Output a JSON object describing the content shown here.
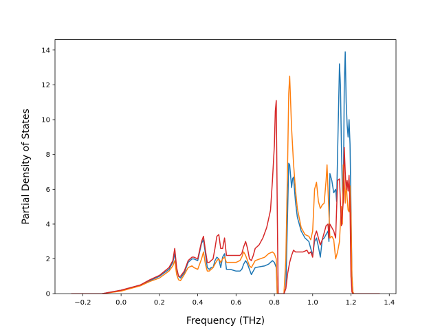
{
  "chart_data": {
    "type": "line",
    "title": "",
    "xlabel": "Frequency (THz)",
    "ylabel": "Partial Density of States",
    "xlim": [
      -0.345,
      1.435
    ],
    "ylim": [
      0,
      14.6
    ],
    "xticks": [
      -0.2,
      0.0,
      0.2,
      0.4,
      0.6,
      0.8,
      1.0,
      1.2,
      1.4
    ],
    "xtick_labels": [
      "−0.2",
      "0.0",
      "0.2",
      "0.4",
      "0.6",
      "0.8",
      "1.0",
      "1.2",
      "1.4"
    ],
    "yticks": [
      0,
      2,
      4,
      6,
      8,
      10,
      12,
      14
    ],
    "ytick_labels": [
      "0",
      "2",
      "4",
      "6",
      "8",
      "10",
      "12",
      "14"
    ],
    "grid": false,
    "legend": "none",
    "series": [
      {
        "color": "#1f77b4",
        "x": [
          -0.26,
          -0.1,
          0.0,
          0.1,
          0.15,
          0.2,
          0.25,
          0.27,
          0.28,
          0.29,
          0.3,
          0.31,
          0.33,
          0.35,
          0.37,
          0.38,
          0.4,
          0.42,
          0.43,
          0.44,
          0.45,
          0.46,
          0.47,
          0.48,
          0.49,
          0.5,
          0.51,
          0.52,
          0.53,
          0.54,
          0.55,
          0.57,
          0.6,
          0.62,
          0.63,
          0.64,
          0.65,
          0.66,
          0.67,
          0.68,
          0.69,
          0.7,
          0.75,
          0.77,
          0.79,
          0.8,
          0.81,
          0.815,
          0.82,
          0.83,
          0.84,
          0.845,
          0.85,
          0.86,
          0.87,
          0.875,
          0.88,
          0.89,
          0.895,
          0.9,
          0.91,
          0.92,
          0.94,
          0.96,
          0.98,
          0.99,
          1.0,
          1.01,
          1.02,
          1.03,
          1.04,
          1.05,
          1.06,
          1.07,
          1.08,
          1.085,
          1.09,
          1.1,
          1.11,
          1.12,
          1.125,
          1.13,
          1.14,
          1.145,
          1.15,
          1.155,
          1.16,
          1.165,
          1.17,
          1.175,
          1.18,
          1.185,
          1.19,
          1.195,
          1.2,
          1.205,
          1.21,
          1.215,
          1.22,
          1.23,
          1.35
        ],
        "y": [
          0,
          0,
          0.2,
          0.5,
          0.75,
          1.0,
          1.4,
          1.8,
          2.3,
          1.4,
          1.0,
          0.9,
          1.2,
          1.8,
          2.0,
          2.0,
          1.9,
          2.9,
          3.1,
          2.3,
          1.5,
          1.4,
          1.5,
          1.5,
          1.9,
          2.1,
          2.0,
          1.5,
          2.1,
          2.3,
          1.4,
          1.4,
          1.3,
          1.3,
          1.4,
          1.7,
          1.9,
          1.7,
          1.4,
          1.1,
          1.3,
          1.5,
          1.6,
          1.7,
          1.9,
          1.8,
          1.5,
          0,
          0,
          0,
          0,
          0,
          0,
          0.3,
          5.0,
          7.5,
          7.4,
          6.1,
          6.6,
          6.7,
          5.3,
          4.4,
          3.6,
          3.2,
          3.0,
          2.6,
          2.2,
          3.0,
          3.2,
          2.7,
          2.1,
          3.1,
          3.2,
          3.4,
          3.6,
          3.0,
          6.9,
          6.5,
          5.8,
          6.0,
          5.3,
          8.0,
          13.2,
          12.0,
          8.5,
          6.0,
          5.3,
          12.0,
          13.9,
          11.0,
          9.7,
          9.0,
          10.0,
          8.6,
          5.0,
          1.0,
          0.1,
          0,
          0,
          0,
          0
        ]
      },
      {
        "color": "#ff7f0e",
        "x": [
          -0.26,
          -0.1,
          0.0,
          0.1,
          0.15,
          0.2,
          0.25,
          0.27,
          0.28,
          0.29,
          0.3,
          0.31,
          0.33,
          0.35,
          0.37,
          0.38,
          0.4,
          0.42,
          0.43,
          0.44,
          0.45,
          0.46,
          0.47,
          0.48,
          0.49,
          0.5,
          0.51,
          0.52,
          0.53,
          0.54,
          0.55,
          0.57,
          0.6,
          0.62,
          0.63,
          0.64,
          0.65,
          0.66,
          0.67,
          0.68,
          0.69,
          0.7,
          0.75,
          0.77,
          0.79,
          0.8,
          0.81,
          0.815,
          0.82,
          0.83,
          0.84,
          0.845,
          0.85,
          0.86,
          0.865,
          0.87,
          0.875,
          0.88,
          0.89,
          0.9,
          0.91,
          0.92,
          0.94,
          0.96,
          0.98,
          0.99,
          1.0,
          1.01,
          1.02,
          1.03,
          1.04,
          1.05,
          1.06,
          1.07,
          1.075,
          1.08,
          1.09,
          1.1,
          1.11,
          1.12,
          1.13,
          1.14,
          1.145,
          1.15,
          1.155,
          1.16,
          1.165,
          1.17,
          1.175,
          1.18,
          1.185,
          1.19,
          1.195,
          1.2,
          1.205,
          1.21,
          1.215,
          1.22,
          1.23,
          1.35
        ],
        "y": [
          0,
          0,
          0.15,
          0.45,
          0.7,
          0.9,
          1.3,
          1.6,
          1.9,
          1.1,
          0.8,
          0.75,
          1.1,
          1.5,
          1.6,
          1.5,
          1.4,
          2.0,
          2.4,
          1.7,
          1.3,
          1.3,
          1.4,
          1.5,
          1.7,
          1.9,
          2.0,
          1.8,
          2.0,
          2.1,
          1.8,
          1.8,
          1.8,
          1.9,
          2.1,
          2.4,
          2.2,
          1.9,
          1.6,
          1.5,
          1.7,
          1.9,
          2.1,
          2.3,
          2.4,
          2.3,
          2.0,
          0,
          0,
          0,
          0,
          0,
          0,
          2.0,
          5.0,
          8.0,
          11.5,
          12.5,
          9.5,
          7.5,
          6.0,
          4.9,
          3.8,
          3.4,
          3.3,
          3.1,
          3.6,
          6.0,
          6.4,
          5.3,
          4.9,
          5.1,
          5.2,
          6.5,
          7.4,
          6.0,
          3.2,
          3.3,
          3.1,
          2.0,
          2.4,
          3.0,
          4.1,
          5.0,
          4.0,
          7.4,
          6.5,
          5.2,
          6.4,
          5.5,
          4.8,
          4.7,
          6.2,
          4.6,
          1.0,
          0.1,
          0,
          0,
          0,
          0
        ]
      },
      {
        "color": "#d62728",
        "x": [
          -0.26,
          -0.1,
          0.0,
          0.1,
          0.15,
          0.2,
          0.25,
          0.27,
          0.28,
          0.29,
          0.3,
          0.31,
          0.33,
          0.35,
          0.37,
          0.38,
          0.4,
          0.42,
          0.43,
          0.44,
          0.45,
          0.46,
          0.47,
          0.48,
          0.49,
          0.5,
          0.51,
          0.52,
          0.53,
          0.54,
          0.55,
          0.57,
          0.6,
          0.62,
          0.63,
          0.64,
          0.65,
          0.66,
          0.67,
          0.68,
          0.69,
          0.7,
          0.72,
          0.74,
          0.76,
          0.78,
          0.79,
          0.8,
          0.805,
          0.81,
          0.815,
          0.82,
          0.83,
          0.84,
          0.85,
          0.86,
          0.87,
          0.88,
          0.89,
          0.9,
          0.91,
          0.93,
          0.95,
          0.97,
          0.98,
          0.99,
          1.0,
          1.01,
          1.02,
          1.03,
          1.04,
          1.05,
          1.06,
          1.07,
          1.08,
          1.085,
          1.09,
          1.1,
          1.11,
          1.12,
          1.13,
          1.14,
          1.15,
          1.16,
          1.165,
          1.17,
          1.175,
          1.18,
          1.185,
          1.19,
          1.195,
          1.2,
          1.205,
          1.21,
          1.215,
          1.22,
          1.23,
          1.35
        ],
        "y": [
          0,
          0,
          0.2,
          0.5,
          0.8,
          1.05,
          1.5,
          1.9,
          2.6,
          1.5,
          1.0,
          1.0,
          1.3,
          1.9,
          2.1,
          2.1,
          2.0,
          3.0,
          3.3,
          2.5,
          1.8,
          1.8,
          1.9,
          2.0,
          2.6,
          3.3,
          3.4,
          2.6,
          2.6,
          3.2,
          2.2,
          2.2,
          2.2,
          2.2,
          2.3,
          2.7,
          3.0,
          2.6,
          2.0,
          1.9,
          2.2,
          2.6,
          2.8,
          3.2,
          3.8,
          4.8,
          6.5,
          8.5,
          10.5,
          11.1,
          5.0,
          0,
          0,
          0,
          0,
          0.3,
          1.2,
          1.8,
          2.2,
          2.5,
          2.4,
          2.4,
          2.4,
          2.5,
          2.3,
          2.4,
          2.1,
          3.3,
          3.6,
          3.2,
          2.8,
          3.1,
          3.5,
          3.9,
          4.0,
          3.2,
          4.0,
          3.8,
          3.6,
          3.2,
          6.5,
          6.6,
          3.9,
          5.3,
          8.4,
          7.0,
          6.0,
          6.5,
          5.9,
          6.8,
          5.0,
          1.0,
          0.1,
          0,
          0,
          0,
          0,
          0
        ]
      }
    ]
  }
}
